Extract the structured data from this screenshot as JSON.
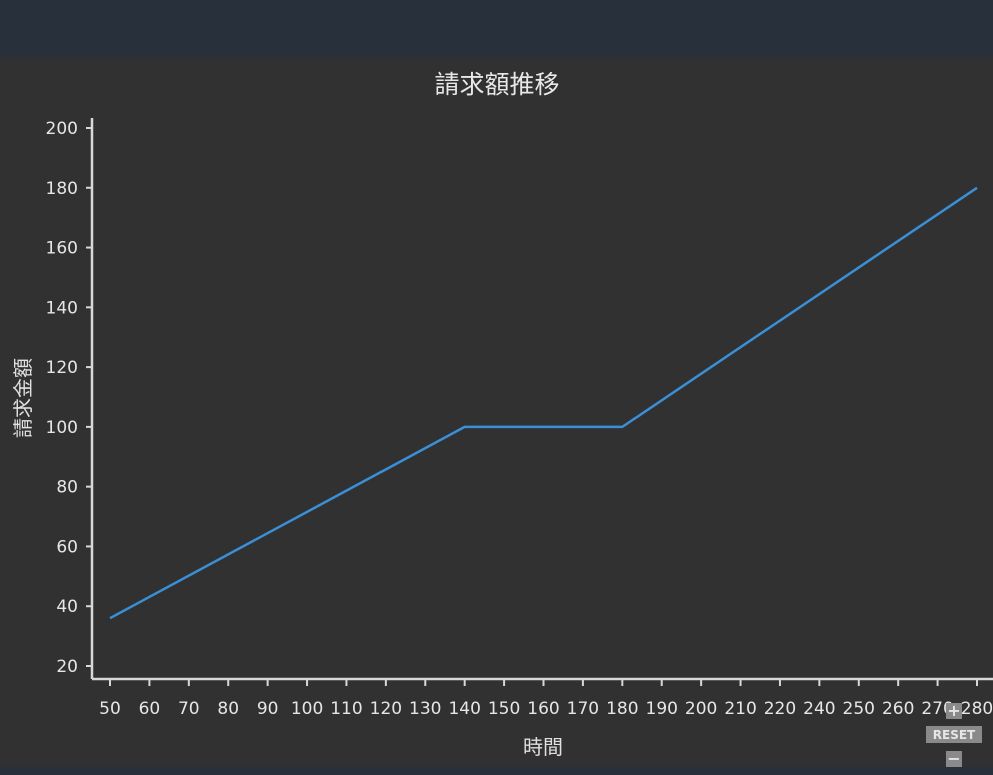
{
  "chart_data": {
    "type": "line",
    "title": "請求額推移",
    "xlabel": "時間",
    "ylabel": "請求金額",
    "categories": [
      "50",
      "60",
      "70",
      "80",
      "90",
      "100",
      "110",
      "120",
      "130",
      "140",
      "150",
      "160",
      "170",
      "180",
      "190",
      "200",
      "210",
      "220",
      "240",
      "250",
      "260",
      "270",
      "280"
    ],
    "series": [
      {
        "values": [
          36,
          null,
          null,
          null,
          null,
          null,
          null,
          null,
          null,
          100,
          null,
          null,
          null,
          100,
          null,
          null,
          null,
          null,
          null,
          null,
          null,
          null,
          180
        ]
      }
    ],
    "points": [
      {
        "x": "50",
        "y": 36
      },
      {
        "x": "140",
        "y": 100
      },
      {
        "x": "180",
        "y": 100
      },
      {
        "x": "280",
        "y": 180
      }
    ],
    "yticks": [
      20,
      40,
      60,
      80,
      100,
      120,
      140,
      160,
      180,
      200
    ],
    "ylim": [
      17,
      202
    ],
    "grid": false,
    "line_color": "#3a8fd6"
  },
  "zoom": {
    "in_label": "+",
    "reset_label": "RESET",
    "out_label": "−"
  }
}
